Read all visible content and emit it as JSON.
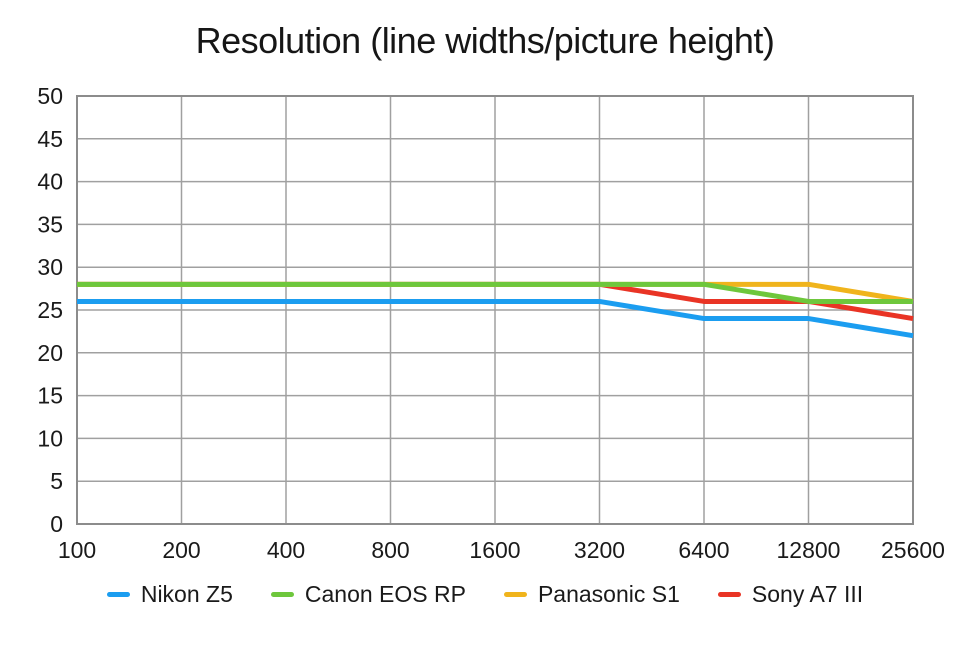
{
  "chart_data": {
    "type": "line",
    "title": "Resolution (line widths/picture height)",
    "xlabel": "",
    "ylabel": "",
    "categories": [
      "100",
      "200",
      "400",
      "800",
      "1600",
      "3200",
      "6400",
      "12800",
      "25600"
    ],
    "series": [
      {
        "name": "Nikon Z5",
        "color": "#1b9df0",
        "values": [
          26,
          26,
          26,
          26,
          26,
          26,
          24,
          24,
          22
        ]
      },
      {
        "name": "Canon EOS RP",
        "color": "#6ec73c",
        "values": [
          28,
          28,
          28,
          28,
          28,
          28,
          28,
          26,
          26
        ]
      },
      {
        "name": "Panasonic S1",
        "color": "#f0b41c",
        "values": [
          28,
          28,
          28,
          28,
          28,
          28,
          28,
          28,
          26
        ]
      },
      {
        "name": "Sony A7 III",
        "color": "#e93425",
        "values": [
          28,
          28,
          28,
          28,
          28,
          28,
          26,
          26,
          24
        ]
      }
    ],
    "draw_order": [
      "Nikon Z5",
      "Sony A7 III",
      "Panasonic S1",
      "Canon EOS RP"
    ],
    "ylim": [
      0,
      50
    ],
    "y_tick_step": 5,
    "grid": true,
    "legend_position": "bottom"
  },
  "style_colors": {
    "grid": "#a0a0a0",
    "border": "#8c8c8c",
    "text": "#1a1a1a",
    "background": "#ffffff"
  }
}
